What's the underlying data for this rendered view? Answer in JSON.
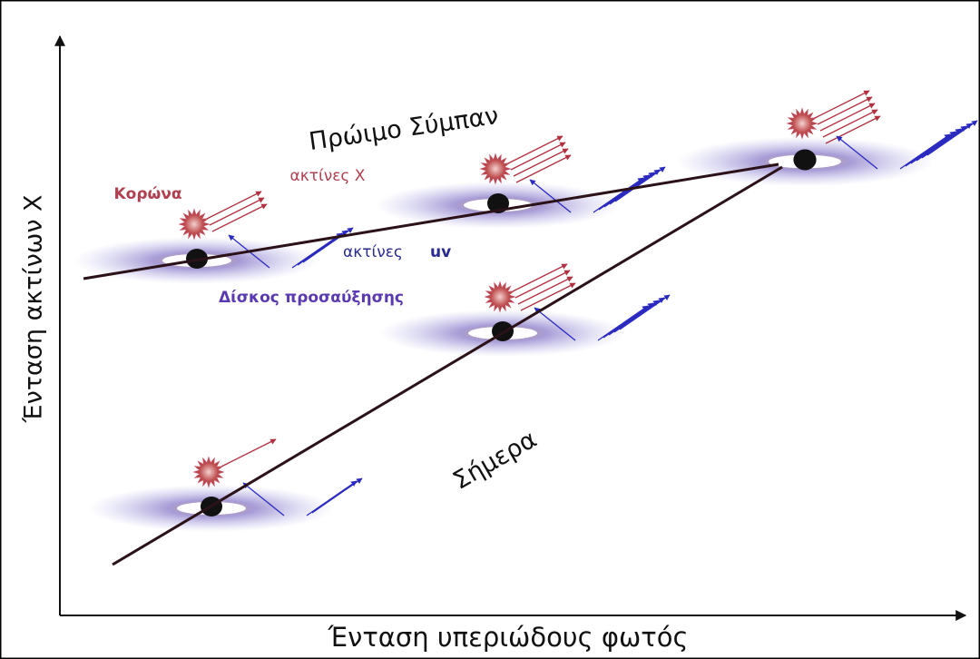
{
  "axes": {
    "y_label": "Ένταση ακτίνων X",
    "x_label": "Ένταση υπεριώδους φωτός"
  },
  "lines": [
    {
      "label": "Πρώιμο Σύμπαν"
    },
    {
      "label": "Σήμερα"
    }
  ],
  "annotations": {
    "corona": "Κορώνα",
    "x_rays": "ακτίνες X",
    "uv_rays": {
      "text": "ακτίνες",
      "bold": "uv"
    },
    "disk": "Δίσκος προσαύξησης"
  }
}
